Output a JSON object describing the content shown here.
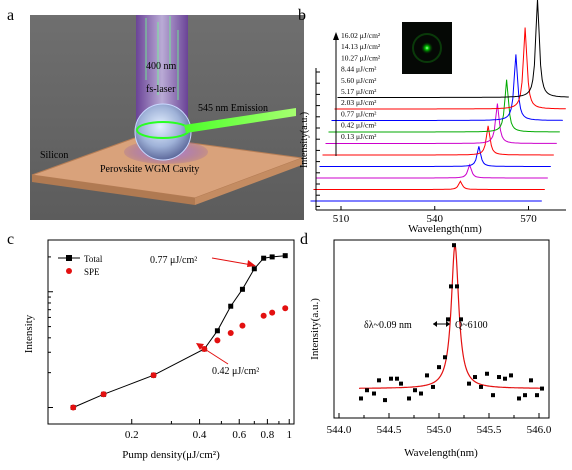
{
  "panels": {
    "a": {
      "label": "a",
      "beam_text": [
        "400 nm",
        "fs-laser"
      ],
      "emission_text": "545 nm  Emission",
      "substrate_text": "Silicon",
      "cavity_text": "Perovskite  WGM Cavity"
    },
    "b": {
      "label": "b",
      "xlabel": "Wavelength(nm)",
      "ylabel": "Intensity(a.u.)",
      "xticks": [
        "510",
        "540",
        "570"
      ],
      "fluences": [
        "16.02 μJ/cm²",
        "14.13 μJ/cm²",
        "10.27 μJ/cm²",
        "8.44 μJ/cm²",
        "5.60 μJ/cm²",
        "5.17 μJ/cm²",
        "2.03 μJ/cm²",
        "0.77 μJ/cm²",
        "0.42 μJ/cm²",
        "0.13 μJ/cm²"
      ],
      "colors": [
        "#000000",
        "#ff0000",
        "#0000ff",
        "#00aa00",
        "#cc00cc",
        "#ff0000",
        "#0000ff",
        "#cc00cc",
        "#ff0000",
        "#0000ff"
      ]
    },
    "c": {
      "label": "c",
      "xlabel": "Pump density(μJ/cm²)",
      "ylabel": "Intensity",
      "xticks": [
        "0.2",
        "0.4",
        "0.6",
        "0.8",
        "1"
      ],
      "legend": [
        "Total",
        "SPE"
      ],
      "annotations": [
        "0.77 μJ/cm²",
        "0.42 μJ/cm²"
      ]
    },
    "d": {
      "label": "d",
      "xlabel": "Wavelength(nm)",
      "ylabel": "Intensity(a.u.)",
      "xticks": [
        "544.0",
        "544.5",
        "545.0",
        "545.5",
        "546.0"
      ],
      "annotation_left": "δλ~0.09 nm",
      "annotation_right": "Q~6100"
    }
  },
  "chart_data": [
    {
      "panel": "b",
      "type": "line",
      "xlabel": "Wavelength(nm)",
      "ylabel": "Intensity(a.u.)",
      "xlim": [
        502,
        582
      ],
      "series": [
        {
          "name": "0.13 μJ/cm²",
          "peak": null
        },
        {
          "name": "0.42 μJ/cm²",
          "peak": 553
        },
        {
          "name": "0.77 μJ/cm²",
          "peak": 555
        },
        {
          "name": "2.03 μJ/cm²",
          "peak": 557
        },
        {
          "name": "5.17 μJ/cm²",
          "peak": 559
        },
        {
          "name": "5.60 μJ/cm²",
          "peak": 561
        },
        {
          "name": "8.44 μJ/cm²",
          "peak": 563
        },
        {
          "name": "10.27 μJ/cm²",
          "peak": 565
        },
        {
          "name": "14.13 μJ/cm²",
          "peak": 567
        },
        {
          "name": "16.02 μJ/cm²",
          "peak": 570
        }
      ]
    },
    {
      "panel": "c",
      "type": "line",
      "xlabel": "Pump density(μJ/cm²)",
      "ylabel": "Intensity",
      "xscale": "log",
      "xlim": [
        0.085,
        1.05
      ],
      "series": [
        {
          "name": "Total",
          "x": [
            0.11,
            0.15,
            0.25,
            0.42,
            0.48,
            0.55,
            0.62,
            0.7,
            0.77,
            0.84,
            0.96
          ],
          "y": [
            1.0,
            1.3,
            1.9,
            3.2,
            4.6,
            7.5,
            10.5,
            15.8,
            19.5,
            20.0,
            20.5
          ]
        },
        {
          "name": "SPE",
          "x": [
            0.11,
            0.15,
            0.25,
            0.42,
            0.48,
            0.55,
            0.62,
            0.77,
            0.84,
            0.96
          ],
          "y": [
            1.0,
            1.3,
            1.9,
            3.2,
            3.8,
            4.4,
            5.1,
            6.2,
            6.6,
            7.2
          ]
        }
      ]
    },
    {
      "panel": "d",
      "type": "scatter",
      "xlabel": "Wavelength(nm)",
      "ylabel": "Intensity(a.u.)",
      "xlim": [
        543.95,
        546.1
      ],
      "ylim": [
        0,
        1.08
      ],
      "fit": {
        "type": "lorentzian",
        "center": 545.16,
        "fwhm": 0.09
      },
      "series": [
        {
          "x": [
            544.22,
            544.28,
            544.35,
            544.4,
            544.46,
            544.52,
            544.58,
            544.62,
            544.7,
            544.76,
            544.82,
            544.88,
            544.94,
            545.0,
            545.06,
            545.09,
            545.12,
            545.15,
            545.18,
            545.22,
            545.3,
            545.36,
            545.42,
            545.48,
            545.54,
            545.6,
            545.66,
            545.72,
            545.8,
            545.86,
            545.92,
            545.98,
            546.03
          ],
          "y": [
            0.07,
            0.12,
            0.1,
            0.18,
            0.06,
            0.19,
            0.19,
            0.16,
            0.07,
            0.12,
            0.1,
            0.21,
            0.14,
            0.26,
            0.32,
            0.55,
            0.75,
            1.0,
            0.75,
            0.55,
            0.16,
            0.2,
            0.14,
            0.22,
            0.09,
            0.2,
            0.19,
            0.21,
            0.07,
            0.09,
            0.18,
            0.09,
            0.13
          ]
        }
      ]
    }
  ]
}
